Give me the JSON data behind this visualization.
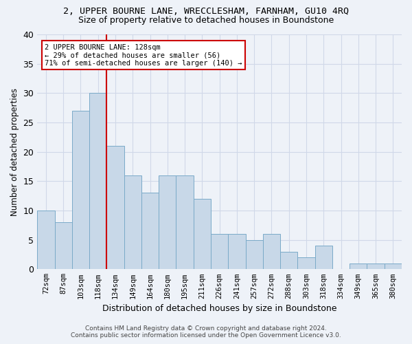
{
  "title": "2, UPPER BOURNE LANE, WRECCLESHAM, FARNHAM, GU10 4RQ",
  "subtitle": "Size of property relative to detached houses in Boundstone",
  "xlabel": "Distribution of detached houses by size in Boundstone",
  "ylabel": "Number of detached properties",
  "categories": [
    "72sqm",
    "87sqm",
    "103sqm",
    "118sqm",
    "134sqm",
    "149sqm",
    "164sqm",
    "180sqm",
    "195sqm",
    "211sqm",
    "226sqm",
    "241sqm",
    "257sqm",
    "272sqm",
    "288sqm",
    "303sqm",
    "318sqm",
    "334sqm",
    "349sqm",
    "365sqm",
    "380sqm"
  ],
  "values": [
    10,
    8,
    27,
    30,
    21,
    16,
    13,
    16,
    16,
    12,
    6,
    6,
    5,
    6,
    3,
    2,
    4,
    0,
    1,
    1,
    1
  ],
  "bar_color": "#c8d8e8",
  "bar_edge_color": "#7aaac8",
  "grid_color": "#d0d8e8",
  "background_color": "#eef2f8",
  "marker_label": "2 UPPER BOURNE LANE: 128sqm",
  "marker_line1": "← 29% of detached houses are smaller (56)",
  "marker_line2": "71% of semi-detached houses are larger (140) →",
  "annotation_box_color": "#ffffff",
  "annotation_box_edge": "#cc0000",
  "marker_line_color": "#cc0000",
  "footer1": "Contains HM Land Registry data © Crown copyright and database right 2024.",
  "footer2": "Contains public sector information licensed under the Open Government Licence v3.0.",
  "ylim": [
    0,
    40
  ],
  "yticks": [
    0,
    5,
    10,
    15,
    20,
    25,
    30,
    35,
    40
  ]
}
